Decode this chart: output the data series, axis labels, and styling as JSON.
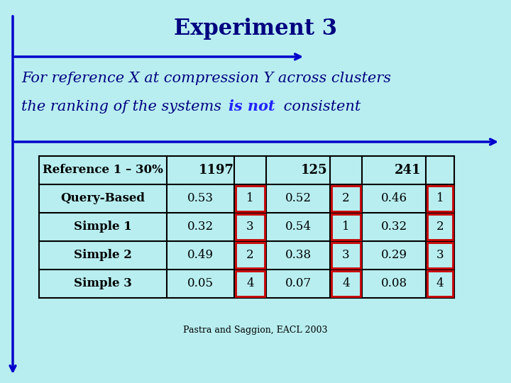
{
  "title": "Experiment 3",
  "subtitle_line1": "For reference X at compression Y across clusters",
  "subtitle_line2_pre": "the ranking of the systems ",
  "subtitle_line2_bold": "is not",
  "subtitle_line2_post": " consistent",
  "background_color": "#b8eef0",
  "title_color": "#000080",
  "text_color": "#000080",
  "table_rows": [
    [
      "Query-Based",
      "0.53",
      "1",
      "0.52",
      "2",
      "0.46",
      "1"
    ],
    [
      "Simple 1",
      "0.32",
      "3",
      "0.54",
      "1",
      "0.32",
      "2"
    ],
    [
      "Simple 2",
      "0.49",
      "2",
      "0.38",
      "3",
      "0.29",
      "3"
    ],
    [
      "Simple 3",
      "0.05",
      "4",
      "0.07",
      "4",
      "0.08",
      "4"
    ]
  ],
  "footer": "Pastra and Saggion, EACL 2003",
  "arrow_color": "#0000CC",
  "rank_highlight_color": "#CC0000",
  "table_bg": "#b8eef0"
}
